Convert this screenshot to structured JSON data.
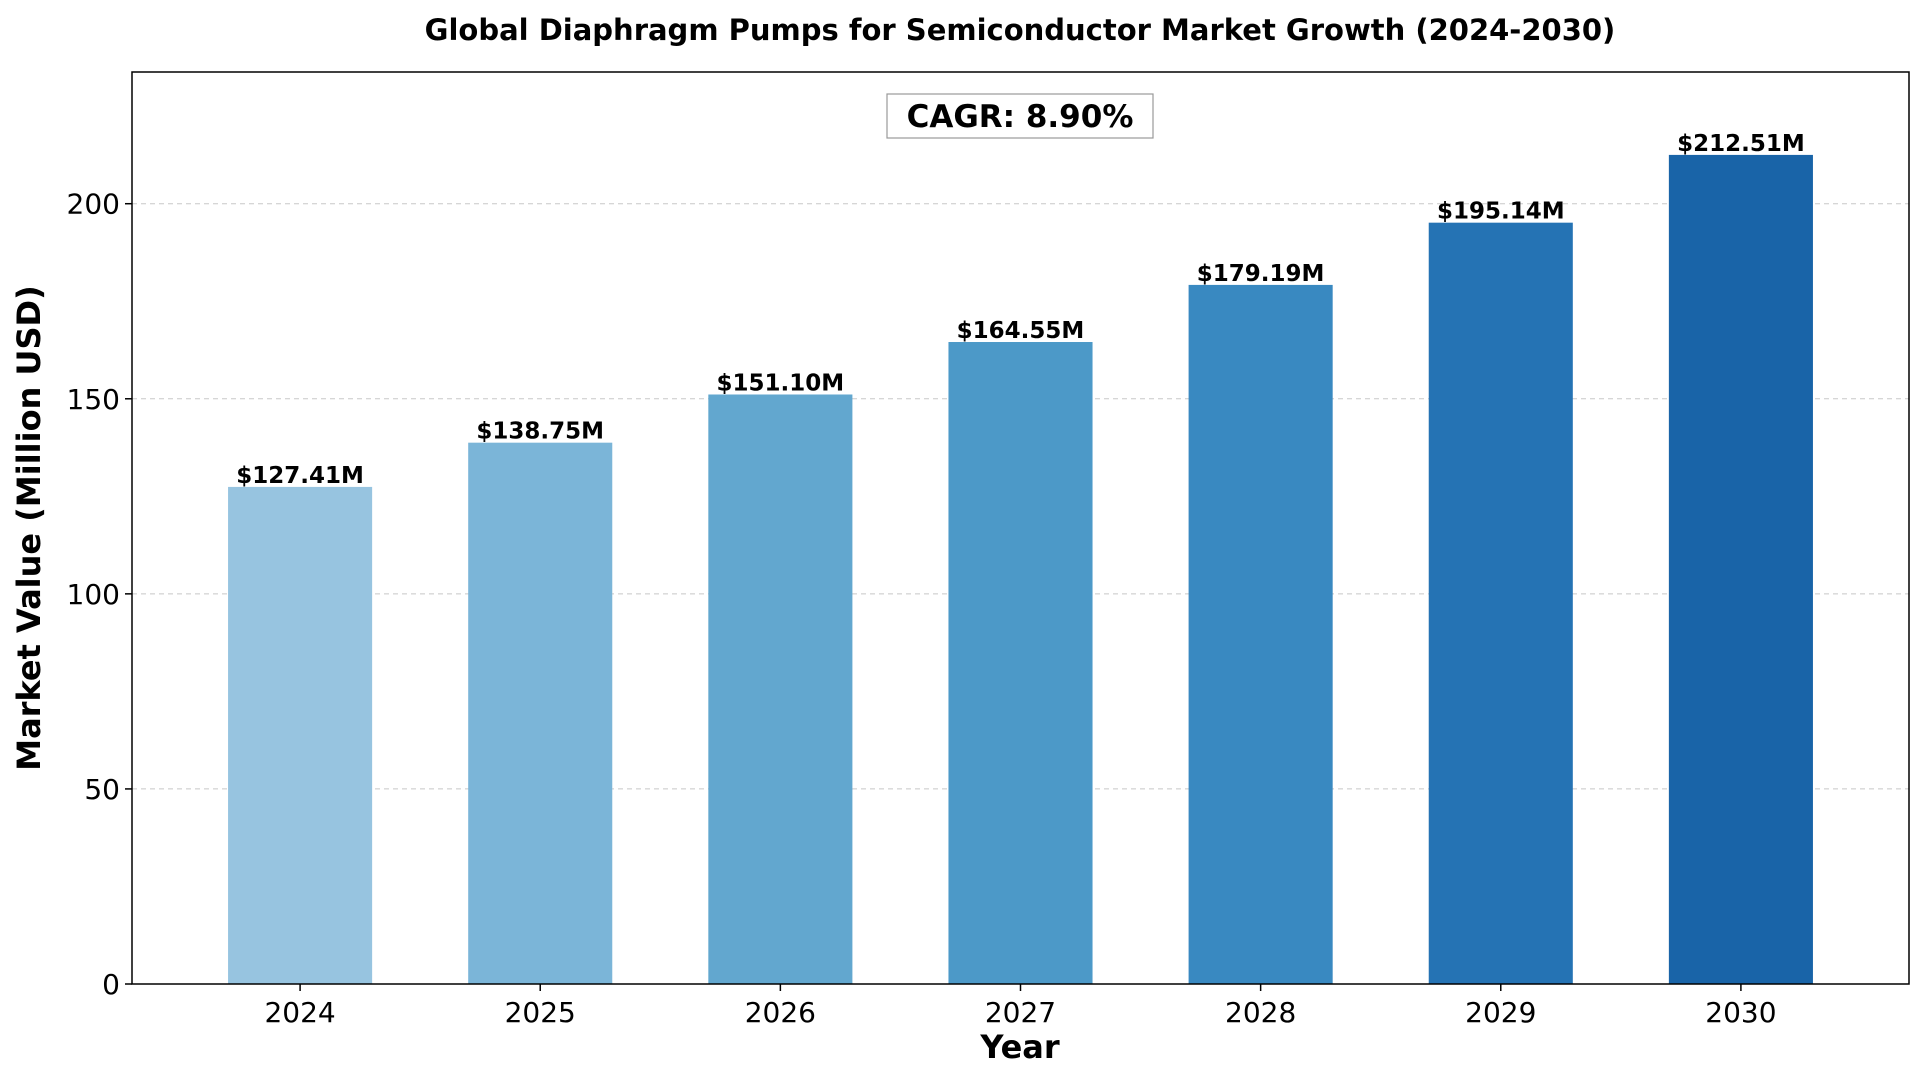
{
  "chart_data": {
    "type": "bar",
    "title": "Global Diaphragm Pumps for Semiconductor Market Growth (2024-2030)",
    "xlabel": "Year",
    "ylabel": "Market Value (Million USD)",
    "categories": [
      "2024",
      "2025",
      "2026",
      "2027",
      "2028",
      "2029",
      "2030"
    ],
    "values": [
      127.41,
      138.75,
      151.1,
      164.55,
      179.19,
      195.14,
      212.51
    ],
    "data_labels": [
      "$127.41M",
      "$138.75M",
      "$151.10M",
      "$164.55M",
      "$179.19M",
      "$195.14M",
      "$212.51M"
    ],
    "bar_colors": [
      "#97c4e0",
      "#7bb5d8",
      "#62a7cf",
      "#4c99c8",
      "#3989c1",
      "#2573b4",
      "#1964a8"
    ],
    "ylim": [
      0,
      233.76
    ],
    "yticks": [
      0,
      50,
      100,
      150,
      200
    ],
    "grid": "horizontal dashed",
    "annotation": "CAGR: 8.90%"
  }
}
